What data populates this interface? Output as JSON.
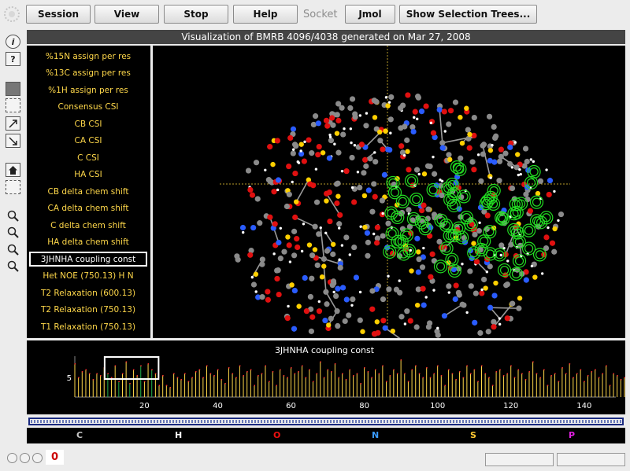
{
  "toolbar": {
    "session": "Session",
    "view": "View",
    "stop": "Stop",
    "help": "Help",
    "socket": "Socket",
    "jmol": "Jmol",
    "selection_trees": "Show Selection Trees..."
  },
  "tools": {
    "info": "i",
    "help": "?"
  },
  "title": "Visualization of BMRB 4096/4038 generated on Mar 27, 2008",
  "menu": {
    "items": [
      "%15N assign per res",
      "%13C assign per res",
      "%1H assign per res",
      "Consensus CSI",
      "CB CSI",
      "CA CSI",
      "C CSI",
      "HA CSI",
      "CB delta chem shift",
      "CA delta chem shift",
      "C delta chem shift",
      "HA delta chem shift",
      "3JHNHA coupling const",
      "Het NOE (750.13) H N",
      "T2 Relaxation (600.13)",
      "T2 Relaxation (750.13)",
      "T1 Relaxation (750.13)"
    ],
    "selected_index": 12
  },
  "chart_data": {
    "type": "bar",
    "title": "3JHNHA coupling const",
    "xlabel": "",
    "ylabel": "",
    "xlim": [
      1,
      148
    ],
    "ylim": [
      0,
      10
    ],
    "x_ticks": [
      20,
      40,
      60,
      80,
      100,
      120,
      140
    ],
    "y_ticks": [
      5
    ],
    "highlight_range": [
      10,
      23
    ],
    "highlight_color": "#22b14c",
    "bar_color": "#ffd84a",
    "values": [
      8.5,
      5,
      6.5,
      7,
      6,
      4.5,
      6,
      5.5,
      7.5,
      6,
      5,
      8,
      4,
      6,
      9,
      3.5,
      7,
      5.5,
      8,
      4,
      8.5,
      7,
      6,
      3,
      5.5,
      3,
      2.5,
      6,
      5,
      4.5,
      6,
      4,
      5,
      6.5,
      7,
      5,
      8,
      6,
      5.5,
      7,
      4.5,
      3.5,
      7.5,
      6,
      5,
      8,
      5.5,
      6.5,
      7,
      3,
      5.5,
      6,
      8,
      4,
      6.5,
      3,
      7,
      5.5,
      5,
      7.5,
      6,
      6.5,
      8,
      5,
      7,
      4,
      6,
      9,
      5,
      7,
      6.5,
      8.5,
      5,
      6,
      4.5,
      7,
      5.5,
      6,
      3.5,
      7.5,
      6.5,
      5,
      7,
      6,
      8,
      4,
      5.5,
      7,
      6,
      9.5,
      6,
      4,
      7,
      8,
      6,
      5,
      7.5,
      5,
      6,
      8,
      5.5,
      3,
      7,
      6,
      4.5,
      6.5,
      5,
      8,
      6,
      7,
      4,
      8,
      6,
      5,
      3,
      6.5,
      7,
      5.5,
      6,
      8,
      5,
      7,
      6,
      4.5,
      6.5,
      9,
      6,
      5,
      7,
      3,
      5.5,
      6,
      4,
      7.5,
      6,
      8.5,
      5,
      6,
      7,
      4,
      5.5,
      6.5,
      7,
      5,
      6,
      8,
      3,
      6,
      5.5,
      4.5,
      5,
      6,
      8.5,
      6
    ]
  },
  "legend": [
    {
      "label": "C",
      "color": "#c8c8c8"
    },
    {
      "label": "H",
      "color": "#ffffff"
    },
    {
      "label": "O",
      "color": "#f01010"
    },
    {
      "label": "N",
      "color": "#3a9bff"
    },
    {
      "label": "S",
      "color": "#ffc832"
    },
    {
      "label": "P",
      "color": "#e020e0"
    }
  ],
  "status": {
    "counter": "0"
  }
}
